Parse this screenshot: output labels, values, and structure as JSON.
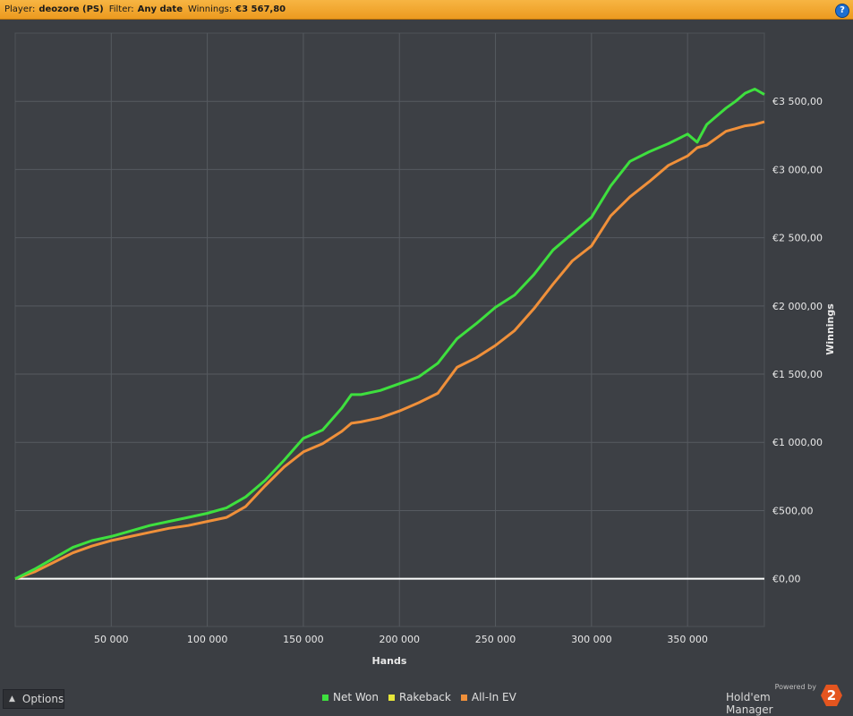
{
  "header": {
    "player_label": "Player:",
    "player_value": "deozore (PS)",
    "filter_label": "Filter:",
    "filter_value": "Any date",
    "winnings_label": "Winnings:",
    "winnings_value": "€3 567,80",
    "help_label": "?"
  },
  "options_button": {
    "label": "Options"
  },
  "branding": {
    "powered_by": "Powered by",
    "product": "Hold'em Manager",
    "logo_number": "2"
  },
  "chart_data": {
    "type": "line",
    "xlabel": "Hands",
    "ylabel": "Winnings",
    "xlim": [
      0,
      390000
    ],
    "ylim": [
      -350,
      4000
    ],
    "x_ticks": [
      {
        "value": 50000,
        "label": "50 000"
      },
      {
        "value": 100000,
        "label": "100 000"
      },
      {
        "value": 150000,
        "label": "150 000"
      },
      {
        "value": 200000,
        "label": "200 000"
      },
      {
        "value": 250000,
        "label": "250 000"
      },
      {
        "value": 300000,
        "label": "300 000"
      },
      {
        "value": 350000,
        "label": "350 000"
      }
    ],
    "y_ticks": [
      {
        "value": 0,
        "label": "€0,00"
      },
      {
        "value": 500,
        "label": "€500,00"
      },
      {
        "value": 1000,
        "label": "€1 000,00"
      },
      {
        "value": 1500,
        "label": "€1 500,00"
      },
      {
        "value": 2000,
        "label": "€2 000,00"
      },
      {
        "value": 2500,
        "label": "€2 500,00"
      },
      {
        "value": 3000,
        "label": "€3 000,00"
      },
      {
        "value": 3500,
        "label": "€3 500,00"
      }
    ],
    "grid": true,
    "legend_position": "bottom-center",
    "series": [
      {
        "name": "Net Won",
        "color": "#3ee03e",
        "x": [
          0,
          10000,
          20000,
          30000,
          40000,
          50000,
          60000,
          70000,
          80000,
          90000,
          100000,
          110000,
          120000,
          130000,
          140000,
          150000,
          160000,
          170000,
          175000,
          180000,
          190000,
          200000,
          210000,
          220000,
          230000,
          240000,
          250000,
          260000,
          270000,
          280000,
          290000,
          300000,
          310000,
          320000,
          330000,
          340000,
          350000,
          355000,
          360000,
          370000,
          375000,
          380000,
          385000,
          390000
        ],
        "y": [
          0,
          70,
          150,
          230,
          280,
          310,
          350,
          390,
          420,
          450,
          480,
          520,
          600,
          720,
          870,
          1030,
          1090,
          1250,
          1350,
          1350,
          1380,
          1430,
          1480,
          1580,
          1760,
          1870,
          1990,
          2080,
          2230,
          2410,
          2530,
          2650,
          2880,
          3060,
          3130,
          3190,
          3260,
          3200,
          3330,
          3450,
          3500,
          3560,
          3590,
          3550
        ]
      },
      {
        "name": "Rakeback",
        "color": "#e6e63a",
        "x": [],
        "y": []
      },
      {
        "name": "All-In EV",
        "color": "#f0903a",
        "x": [
          0,
          10000,
          20000,
          30000,
          40000,
          50000,
          60000,
          70000,
          80000,
          90000,
          100000,
          110000,
          120000,
          130000,
          140000,
          150000,
          160000,
          170000,
          175000,
          180000,
          190000,
          200000,
          210000,
          220000,
          230000,
          240000,
          250000,
          260000,
          270000,
          280000,
          290000,
          300000,
          310000,
          320000,
          330000,
          340000,
          350000,
          355000,
          360000,
          370000,
          375000,
          380000,
          385000,
          390000
        ],
        "y": [
          0,
          50,
          120,
          190,
          240,
          280,
          310,
          340,
          370,
          390,
          420,
          450,
          530,
          680,
          820,
          930,
          990,
          1080,
          1140,
          1150,
          1180,
          1230,
          1290,
          1360,
          1550,
          1620,
          1710,
          1820,
          1980,
          2160,
          2330,
          2440,
          2660,
          2800,
          2910,
          3030,
          3100,
          3160,
          3180,
          3280,
          3300,
          3320,
          3330,
          3350
        ]
      }
    ],
    "baseline": {
      "value": 0,
      "color": "#ffffff"
    }
  }
}
